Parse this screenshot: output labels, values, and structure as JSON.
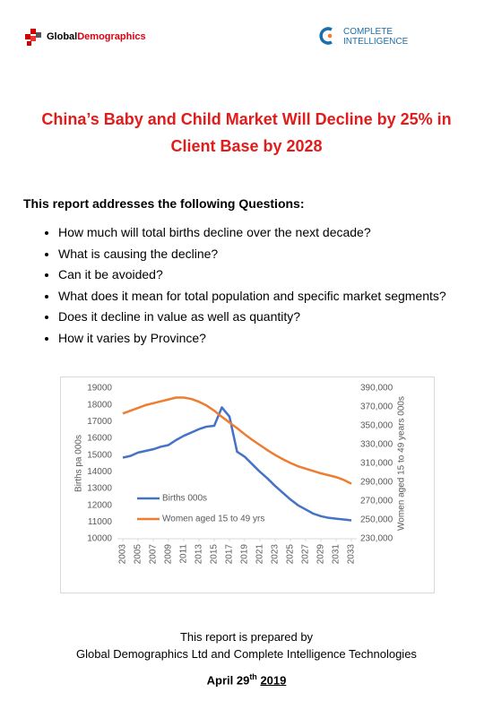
{
  "header": {
    "left_logo": {
      "part1": "Global",
      "part2": "Demographics"
    },
    "right_logo": {
      "line1": "COMPLETE",
      "line2": "INTELLIGENCE"
    }
  },
  "title": "China’s Baby and Child Market Will Decline by 25% in Client Base by 2028",
  "questions": {
    "heading": "This report addresses the following Questions:",
    "items": [
      "How much will total births decline over the next decade?",
      "What is causing the decline?",
      "Can it be avoided?",
      "What does it mean for total population and specific market segments?",
      "Does it decline in value as well as quantity?",
      "How it varies by Province?"
    ]
  },
  "chart_data": {
    "type": "line",
    "x": [
      2003,
      2004,
      2005,
      2006,
      2007,
      2008,
      2009,
      2010,
      2011,
      2012,
      2013,
      2014,
      2015,
      2016,
      2017,
      2018,
      2019,
      2020,
      2021,
      2022,
      2023,
      2024,
      2025,
      2026,
      2027,
      2028,
      2029,
      2030,
      2031,
      2032,
      2033
    ],
    "xlim": [
      2003,
      2033
    ],
    "xticks": [
      2003,
      2005,
      2007,
      2009,
      2011,
      2013,
      2015,
      2017,
      2019,
      2021,
      2023,
      2025,
      2027,
      2029,
      2031,
      2033
    ],
    "ylabel": "Births pa 000s",
    "y2label": "Women aged 15 to 49 years 000s",
    "ylim": [
      10000,
      19000
    ],
    "yticks": [
      10000,
      11000,
      12000,
      13000,
      14000,
      15000,
      16000,
      17000,
      18000,
      19000
    ],
    "y2lim": [
      230000,
      390000
    ],
    "y2ticks": [
      {
        "value": 230000,
        "label": "230,000"
      },
      {
        "value": 250000,
        "label": "250,000"
      },
      {
        "value": 270000,
        "label": "270,000"
      },
      {
        "value": 290000,
        "label": "290,000"
      },
      {
        "value": 310000,
        "label": "310,000"
      },
      {
        "value": 330000,
        "label": "330,000"
      },
      {
        "value": 350000,
        "label": "350,000"
      },
      {
        "value": 370000,
        "label": "370,000"
      },
      {
        "value": 390000,
        "label": "390,000"
      }
    ],
    "legend": "lower left",
    "series": [
      {
        "name": "Births 000s",
        "color": "#4472c4",
        "values": [
          14850,
          14950,
          15150,
          15250,
          15350,
          15500,
          15600,
          15900,
          16150,
          16350,
          16550,
          16700,
          16750,
          17850,
          17300,
          15200,
          14900,
          14450,
          14000,
          13600,
          13150,
          12750,
          12350,
          12000,
          11750,
          11500,
          11350,
          11250,
          11200,
          11150,
          11100
        ]
      },
      {
        "name": "Women aged 15 to 49 yrs",
        "color": "#ed7d31",
        "axis": "y2",
        "values": [
          363000,
          366000,
          369000,
          372000,
          374000,
          376000,
          378000,
          380000,
          380000,
          378500,
          375500,
          371500,
          366000,
          359500,
          353500,
          347500,
          341000,
          335000,
          329500,
          324000,
          319000,
          314500,
          310500,
          307000,
          304500,
          302000,
          299500,
          297500,
          295500,
          292500,
          288500
        ]
      }
    ]
  },
  "footer": {
    "line1": "This report is prepared by",
    "line2": "Global Demographics Ltd and Complete Intelligence Technologies",
    "date": {
      "day": "April 29",
      "suffix": "th",
      "year": "2019"
    }
  }
}
